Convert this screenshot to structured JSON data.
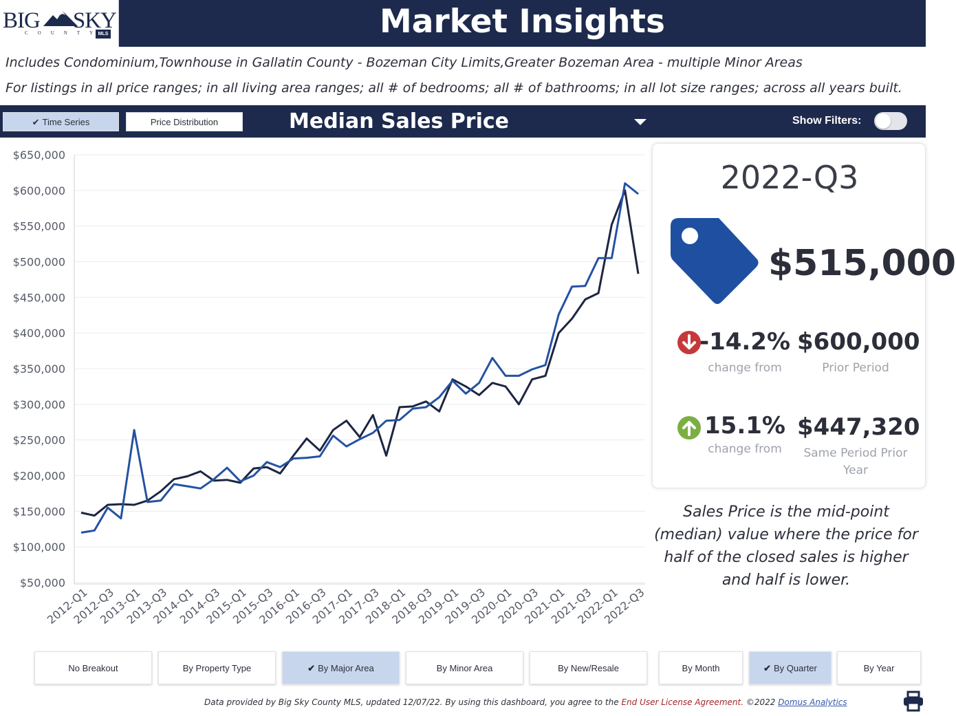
{
  "logo": {
    "text_left": "BIG",
    "text_right": "SKY",
    "subtext": "COUNTY",
    "badge": "MLS"
  },
  "header": {
    "title": "Market Insights"
  },
  "description": {
    "line1": "Includes Condominium,Townhouse in Gallatin County - Bozeman City Limits,Greater Bozeman Area - multiple Minor Areas",
    "line2": "For listings in all price ranges; in all living area ranges; all # of bedrooms; all # of bathrooms; in all lot size ranges; across all years built."
  },
  "toolbar": {
    "time_series_label": "Time Series",
    "price_distribution_label": "Price Distribution",
    "metric_title": "Median Sales Price",
    "show_filters_label": "Show Filters:",
    "show_filters_on": false
  },
  "chart_data": {
    "type": "line",
    "categories": [
      "2012-Q1",
      "2012-Q2",
      "2012-Q3",
      "2012-Q4",
      "2013-Q1",
      "2013-Q2",
      "2013-Q3",
      "2013-Q4",
      "2014-Q1",
      "2014-Q2",
      "2014-Q3",
      "2014-Q4",
      "2015-Q1",
      "2015-Q2",
      "2015-Q3",
      "2015-Q4",
      "2016-Q1",
      "2016-Q2",
      "2016-Q3",
      "2016-Q4",
      "2017-Q1",
      "2017-Q2",
      "2017-Q3",
      "2017-Q4",
      "2018-Q1",
      "2018-Q2",
      "2018-Q3",
      "2018-Q4",
      "2019-Q1",
      "2019-Q2",
      "2019-Q3",
      "2019-Q4",
      "2020-Q1",
      "2020-Q2",
      "2020-Q3",
      "2020-Q4",
      "2021-Q1",
      "2021-Q2",
      "2021-Q3",
      "2021-Q4",
      "2022-Q1",
      "2022-Q2",
      "2022-Q3"
    ],
    "tick_labels": [
      "2012-Q1",
      "2012-Q3",
      "2013-Q1",
      "2013-Q3",
      "2014-Q1",
      "2014-Q3",
      "2015-Q1",
      "2015-Q3",
      "2016-Q1",
      "2016-Q3",
      "2017-Q1",
      "2017-Q3",
      "2018-Q1",
      "2018-Q3",
      "2019-Q1",
      "2019-Q3",
      "2020-Q1",
      "2020-Q3",
      "2021-Q1",
      "2021-Q3",
      "2022-Q1",
      "2022-Q3"
    ],
    "series": [
      {
        "color": "#1c2541",
        "values": [
          148000,
          144000,
          159000,
          160000,
          159000,
          165000,
          178000,
          195000,
          199000,
          206000,
          193000,
          194000,
          190000,
          210000,
          212000,
          203000,
          228000,
          252000,
          235000,
          264000,
          277000,
          254000,
          285000,
          228000,
          296000,
          297000,
          304000,
          290000,
          335000,
          325000,
          313000,
          330000,
          325000,
          300000,
          335000,
          340000,
          400000,
          420000,
          447000,
          456000,
          552000,
          600000,
          483000
        ]
      },
      {
        "color": "#2452a1",
        "values": [
          120000,
          123000,
          155000,
          140000,
          264000,
          163000,
          165000,
          188000,
          185000,
          182000,
          195000,
          211000,
          192000,
          200000,
          219000,
          212000,
          224000,
          225000,
          227000,
          256000,
          241000,
          251000,
          260000,
          277000,
          278000,
          294000,
          296000,
          310000,
          333000,
          315000,
          330000,
          365000,
          340000,
          340000,
          349000,
          355000,
          426000,
          465000,
          466000,
          505000,
          505000,
          610000,
          595000
        ]
      }
    ],
    "yticks": [
      "$650,000",
      "$600,000",
      "$550,000",
      "$500,000",
      "$450,000",
      "$400,000",
      "$350,000",
      "$300,000",
      "$250,000",
      "$200,000",
      "$150,000",
      "$100,000",
      "$50,000"
    ],
    "ylim": [
      50000,
      650000
    ],
    "grid": "horizontal"
  },
  "summary": {
    "period": "2022-Q3",
    "value": "$515,000",
    "change1_pct": "-14.2%",
    "change1_label": "change from",
    "change1_value": "$600,000",
    "change1_ref": "Prior Period",
    "change2_pct": "15.1%",
    "change2_label": "change from",
    "change2_value": "$447,320",
    "change2_ref": "Same Period Prior Year",
    "tag_color": "#1f4fa0",
    "down_color": "#c6393b",
    "up_color": "#7cae43"
  },
  "note": "Sales Price is the mid-point (median) value where the price for half of the closed sales is higher and half is lower.",
  "breakout_buttons": [
    {
      "label": "No Breakout",
      "active": false
    },
    {
      "label": "By Property Type",
      "active": false
    },
    {
      "label": "By Major Area",
      "active": true
    },
    {
      "label": "By Minor Area",
      "active": false
    },
    {
      "label": "By New/Resale",
      "active": false
    }
  ],
  "period_buttons": [
    {
      "label": "By Month",
      "active": false
    },
    {
      "label": "By Quarter",
      "active": true
    },
    {
      "label": "By Year",
      "active": false
    }
  ],
  "footer": {
    "text": "Data provided by Big Sky County MLS, updated 12/07/22.  By using this dashboard, you agree to the ",
    "license_link": "End User License Agreement.",
    "copyright": " ©2022 ",
    "company_link": "Domus Analytics"
  }
}
